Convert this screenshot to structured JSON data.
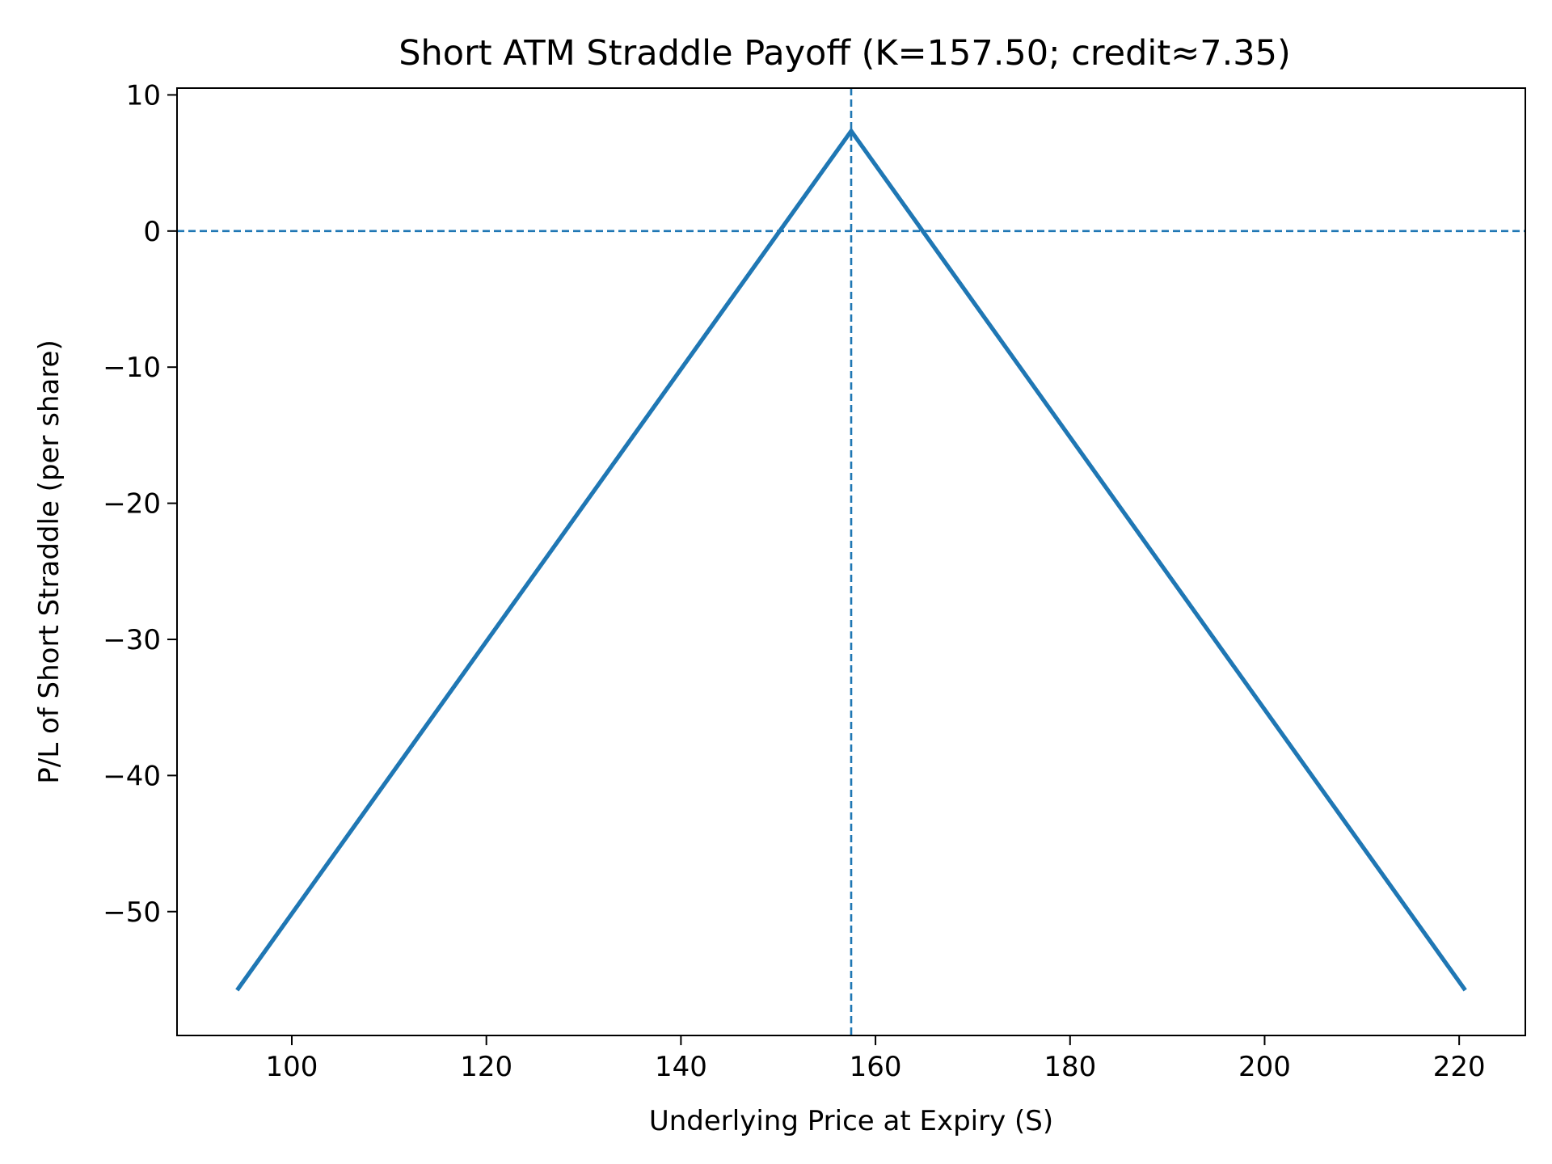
{
  "chart_data": {
    "type": "line",
    "title": "Short ATM Straddle Payoff (K=157.50; credit≈7.35)",
    "xlabel": "Underlying Price at Expiry (S)",
    "ylabel": "P/L of Short Straddle (per share)",
    "xlim": [
      88.2,
      226.8
    ],
    "ylim": [
      -59.1,
      10.5
    ],
    "xticks": [
      100,
      120,
      140,
      160,
      180,
      200,
      220
    ],
    "yticks": [
      10,
      0,
      -10,
      -20,
      -30,
      -40,
      -50
    ],
    "tick_labels_x": [
      "100",
      "120",
      "140",
      "160",
      "180",
      "200",
      "220"
    ],
    "tick_labels_y": [
      "10",
      "0",
      "−10",
      "−20",
      "−30",
      "−40",
      "−50"
    ],
    "grid": false,
    "legend": "none",
    "series": [
      {
        "x": [
          94.5,
          157.5,
          220.5
        ],
        "y": [
          -55.65,
          7.35,
          -55.65
        ],
        "color": "#1f77b4",
        "style": "solid"
      }
    ],
    "reference_lines": [
      {
        "orientation": "horizontal",
        "value": 0,
        "color": "#1f77b4",
        "style": "dashed"
      },
      {
        "orientation": "vertical",
        "value": 157.5,
        "color": "#1f77b4",
        "style": "dashed"
      }
    ]
  }
}
